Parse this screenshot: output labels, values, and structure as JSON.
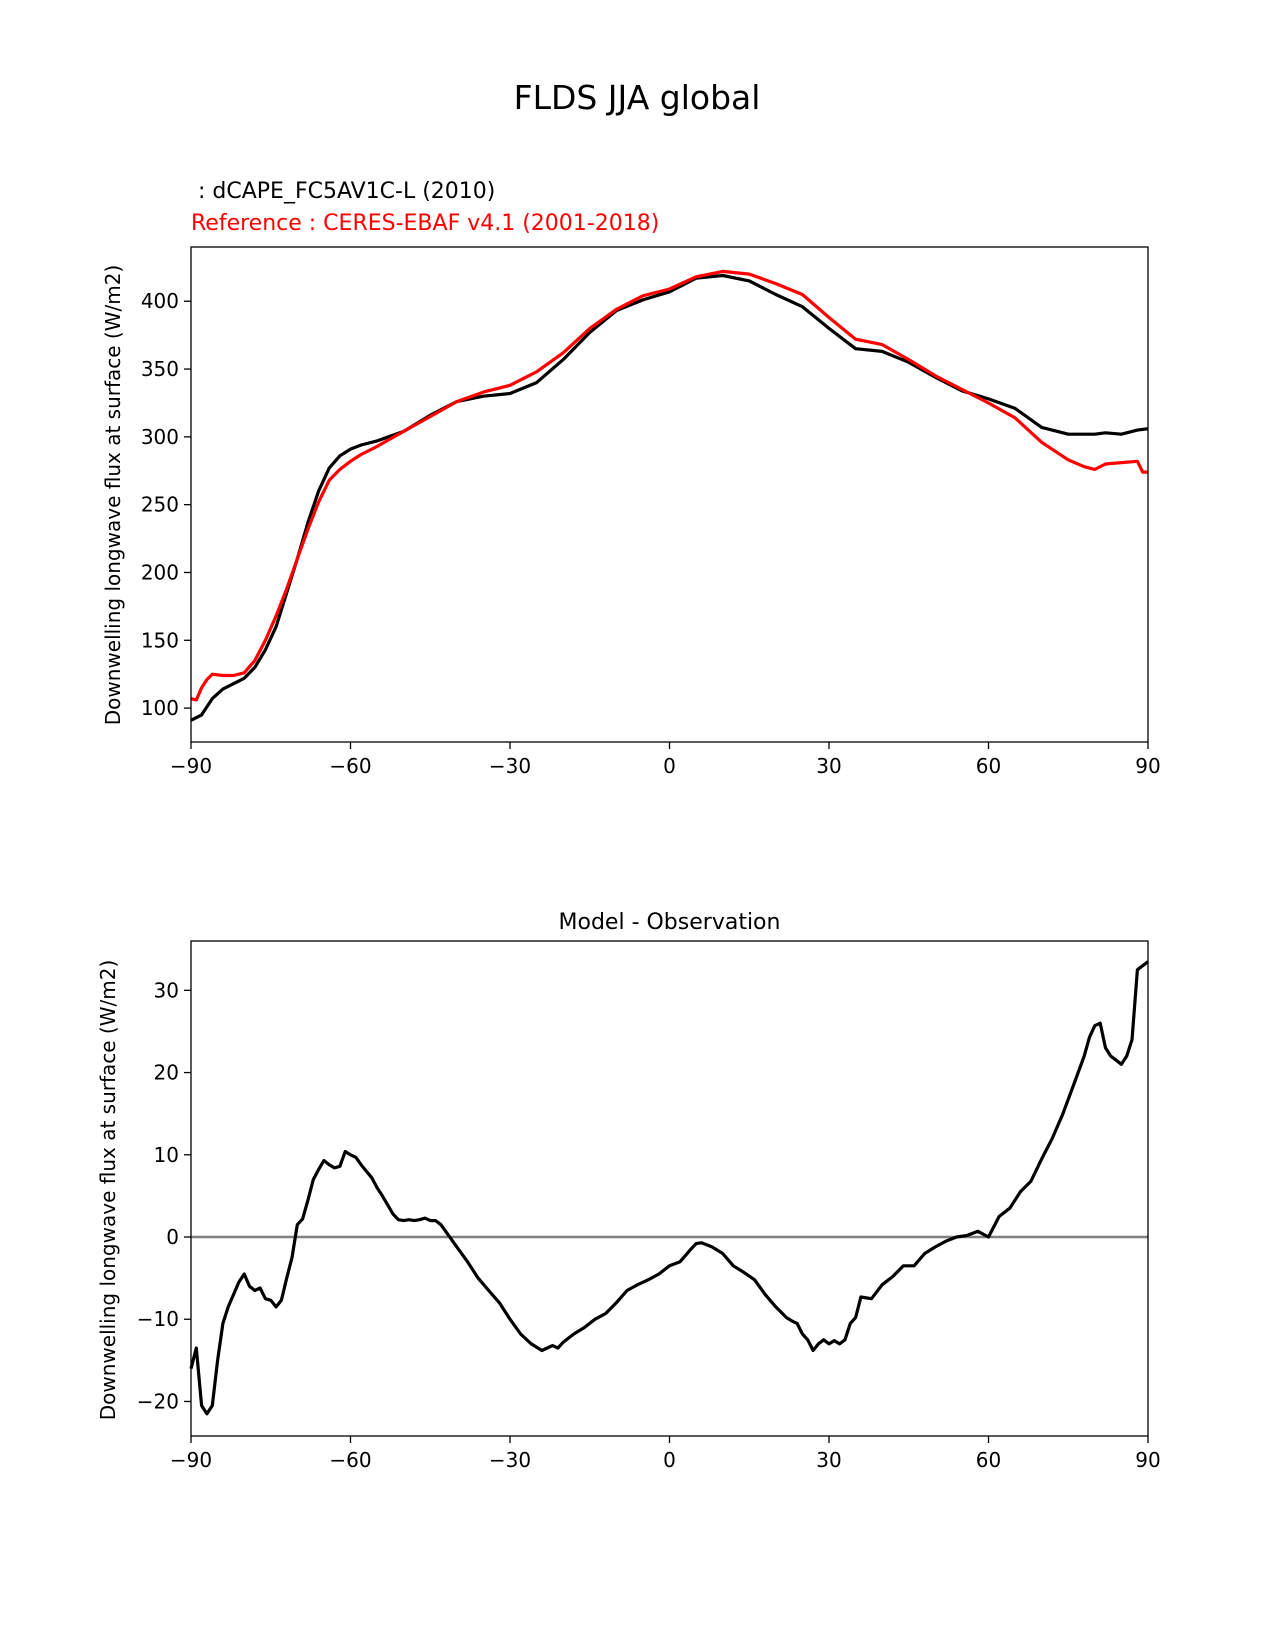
{
  "figure": {
    "title": "FLDS JJA global",
    "model_label": " : dCAPE_FC5AV1C-L (2010)",
    "reference_label": "Reference : CERES-EBAF v4.1 (2001-2018)",
    "colors": {
      "model": "#000000",
      "reference": "#ff0000",
      "zero_line": "#808080"
    }
  },
  "chart_data": [
    {
      "type": "line",
      "title": "",
      "xlabel": "",
      "ylabel": "Downwelling longwave flux at surface (W/m2)",
      "xlim": [
        -90,
        90
      ],
      "ylim": [
        75,
        440
      ],
      "xticks": [
        -90,
        -60,
        -30,
        0,
        30,
        60,
        90
      ],
      "xtick_labels": [
        "−90",
        "−60",
        "−30",
        "0",
        "30",
        "60",
        "90"
      ],
      "yticks": [
        100,
        150,
        200,
        250,
        300,
        350,
        400
      ],
      "ytick_labels": [
        "100",
        "150",
        "200",
        "250",
        "300",
        "350",
        "400"
      ],
      "grid": false,
      "series": [
        {
          "name": "dCAPE_FC5AV1C-L (2010)",
          "color": "#000000",
          "x": [
            -90,
            -88,
            -86,
            -84,
            -82,
            -80,
            -78,
            -76,
            -74,
            -72,
            -70,
            -68,
            -66,
            -64,
            -62,
            -60,
            -58,
            -55,
            -50,
            -45,
            -40,
            -35,
            -30,
            -25,
            -20,
            -15,
            -10,
            -5,
            0,
            5,
            10,
            15,
            20,
            25,
            30,
            35,
            40,
            45,
            50,
            55,
            60,
            65,
            70,
            75,
            80,
            82,
            85,
            88,
            90
          ],
          "y": [
            91,
            95,
            107,
            114,
            118,
            122,
            130,
            143,
            160,
            185,
            210,
            237,
            260,
            277,
            286,
            291,
            294,
            297,
            304,
            316,
            326,
            330,
            332,
            340,
            357,
            377,
            393,
            401,
            407,
            417,
            419,
            415,
            405,
            396,
            380,
            365,
            363,
            355,
            344,
            334,
            328,
            321,
            307,
            302,
            302,
            303,
            302,
            305,
            306
          ]
        },
        {
          "name": "Reference : CERES-EBAF v4.1 (2001-2018)",
          "color": "#ff0000",
          "x": [
            -90,
            -89,
            -88,
            -87,
            -86,
            -84,
            -82,
            -80,
            -78,
            -76,
            -74,
            -72,
            -70,
            -68,
            -66,
            -64,
            -62,
            -60,
            -58,
            -55,
            -50,
            -45,
            -40,
            -35,
            -30,
            -25,
            -20,
            -15,
            -10,
            -5,
            0,
            5,
            10,
            15,
            20,
            25,
            30,
            35,
            40,
            45,
            50,
            55,
            60,
            65,
            70,
            75,
            78,
            80,
            82,
            85,
            88,
            89,
            90
          ],
          "y": [
            107,
            106,
            115,
            121,
            125,
            124,
            124,
            126,
            135,
            150,
            168,
            188,
            210,
            232,
            252,
            268,
            276,
            282,
            287,
            293,
            304,
            315,
            326,
            333,
            338,
            348,
            362,
            380,
            394,
            404,
            409,
            418,
            422,
            420,
            413,
            405,
            388,
            372,
            368,
            357,
            345,
            335,
            325,
            314,
            296,
            283,
            278,
            276,
            280,
            281,
            282,
            274,
            274
          ]
        }
      ]
    },
    {
      "type": "line",
      "title": "Model - Observation",
      "xlabel": "",
      "ylabel": "Downwelling longwave flux at surface (W/m2)",
      "xlim": [
        -90,
        90
      ],
      "ylim": [
        -24.2,
        36
      ],
      "xticks": [
        -90,
        -60,
        -30,
        0,
        30,
        60,
        90
      ],
      "xtick_labels": [
        "−90",
        "−60",
        "−30",
        "0",
        "30",
        "60",
        "90"
      ],
      "yticks": [
        -20,
        -10,
        0,
        10,
        20,
        30
      ],
      "ytick_labels": [
        "−20",
        "−10",
        "0",
        "10",
        "20",
        "30"
      ],
      "grid": false,
      "reference_line": 0,
      "series": [
        {
          "name": "Model - Observation",
          "color": "#000000",
          "x": [
            -90,
            -89,
            -88,
            -87,
            -86,
            -85,
            -84,
            -83,
            -82,
            -81,
            -80,
            -79,
            -78,
            -77,
            -76,
            -75,
            -74,
            -73,
            -72,
            -71,
            -70,
            -69,
            -68,
            -67,
            -66,
            -65,
            -64,
            -63,
            -62,
            -61,
            -60,
            -59,
            -58,
            -57,
            -56,
            -55,
            -54,
            -53,
            -52,
            -51,
            -50,
            -49,
            -48,
            -47,
            -46,
            -45,
            -44,
            -43,
            -42,
            -40,
            -38,
            -36,
            -34,
            -32,
            -30,
            -28,
            -26,
            -24,
            -23,
            -22,
            -21,
            -20,
            -18,
            -16,
            -14,
            -12,
            -10,
            -8,
            -6,
            -4,
            -2,
            0,
            2,
            4,
            5,
            6,
            8,
            10,
            12,
            14,
            16,
            18,
            20,
            22,
            23,
            24,
            25,
            26,
            27,
            28,
            29,
            30,
            31,
            32,
            33,
            34,
            35,
            36,
            38,
            40,
            42,
            44,
            46,
            48,
            50,
            52,
            54,
            56,
            58,
            60,
            62,
            64,
            66,
            68,
            70,
            72,
            74,
            76,
            78,
            79,
            80,
            81,
            82,
            83,
            84,
            85,
            86,
            87,
            88,
            89,
            90
          ],
          "y": [
            -16,
            -13.5,
            -20.5,
            -21.5,
            -20.5,
            -15,
            -10.5,
            -8.5,
            -7,
            -5.5,
            -4.5,
            -6,
            -6.5,
            -6.2,
            -7.5,
            -7.7,
            -8.5,
            -7.7,
            -5,
            -2.5,
            1.5,
            2.2,
            4.5,
            7,
            8.2,
            9.3,
            8.8,
            8.4,
            8.6,
            10.4,
            10,
            9.7,
            8.8,
            8,
            7.2,
            6,
            5,
            3.9,
            2.8,
            2.1,
            2,
            2.1,
            2,
            2.1,
            2.3,
            2,
            2,
            1.5,
            0.6,
            -1.2,
            -3,
            -5,
            -6.5,
            -8,
            -10,
            -11.8,
            -13,
            -13.8,
            -13.5,
            -13.2,
            -13.5,
            -12.8,
            -11.8,
            -11,
            -10,
            -9.3,
            -8,
            -6.5,
            -5.8,
            -5.2,
            -4.5,
            -3.5,
            -3,
            -1.5,
            -0.8,
            -0.7,
            -1.2,
            -2,
            -3.5,
            -4.3,
            -5.2,
            -7,
            -8.5,
            -9.8,
            -10.2,
            -10.5,
            -11.8,
            -12.5,
            -13.8,
            -13,
            -12.5,
            -13,
            -12.6,
            -13,
            -12.5,
            -10.5,
            -9.8,
            -7.3,
            -7.5,
            -5.8,
            -4.8,
            -3.5,
            -3.5,
            -2,
            -1.2,
            -0.5,
            0,
            0.2,
            0.7,
            0,
            2.5,
            3.5,
            5.5,
            6.8,
            9.5,
            12,
            15,
            18.5,
            22,
            24.3,
            25.7,
            26,
            23,
            22,
            21.5,
            21,
            22,
            24,
            32.5,
            33,
            33.5
          ]
        }
      ]
    }
  ]
}
